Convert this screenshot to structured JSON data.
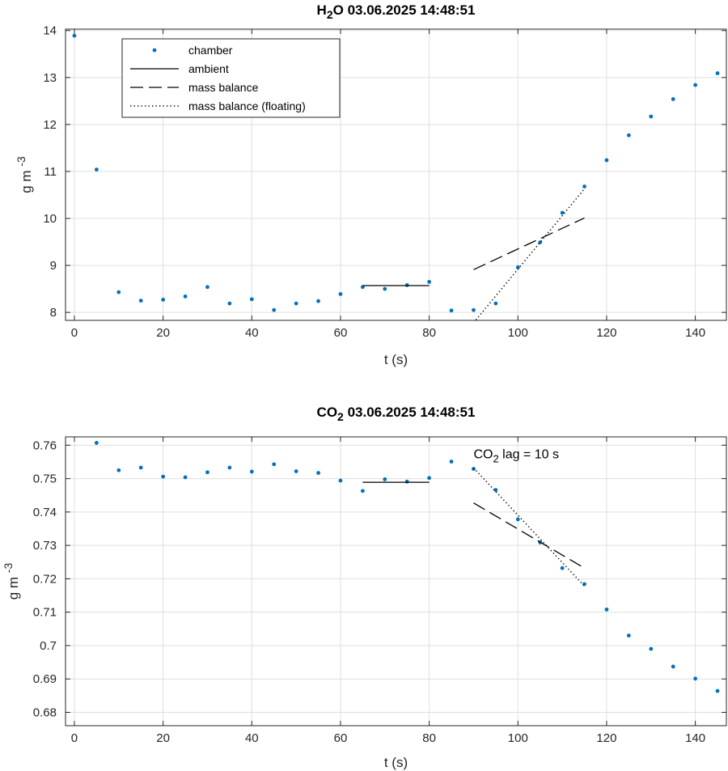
{
  "chart_data": [
    {
      "type": "scatter",
      "title": {
        "main": "H",
        "sub": "2",
        "tail": "O  03.06.2025 14:48:51"
      },
      "xlabel": "t (s)",
      "ylabel": {
        "base": "g m ",
        "sup": "-3"
      },
      "xlim": [
        -2,
        147
      ],
      "ylim": [
        7.83,
        14.03
      ],
      "xticks": [
        0,
        20,
        40,
        60,
        80,
        100,
        120,
        140
      ],
      "yticks": [
        8,
        9,
        10,
        11,
        12,
        13,
        14
      ],
      "ytick_labels": [
        "8",
        "9",
        "10",
        "11",
        "12",
        "13",
        "14"
      ],
      "grid": true,
      "legend_position": "top-left",
      "legend": [
        "chamber",
        "ambient",
        "mass balance",
        "mass balance (floating)"
      ],
      "series": [
        {
          "name": "chamber",
          "style": "dots",
          "color": "#0072BD",
          "x": [
            0,
            5,
            10,
            15,
            20,
            25,
            30,
            35,
            40,
            45,
            50,
            55,
            60,
            65,
            70,
            75,
            80,
            85,
            90,
            95,
            100,
            105,
            110,
            115,
            120,
            125,
            130,
            135,
            140,
            145
          ],
          "y": [
            13.89,
            11.04,
            8.43,
            8.25,
            8.27,
            8.34,
            8.54,
            8.19,
            8.28,
            8.05,
            8.19,
            8.24,
            8.39,
            8.54,
            8.5,
            8.58,
            8.65,
            8.04,
            8.05,
            8.19,
            8.96,
            9.49,
            10.12,
            10.68,
            11.24,
            11.77,
            12.17,
            12.54,
            12.84,
            13.09
          ]
        },
        {
          "name": "ambient",
          "style": "solid",
          "color": "#000000",
          "x": [
            65,
            80
          ],
          "y": [
            8.57,
            8.57
          ]
        },
        {
          "name": "mass balance",
          "style": "dashed",
          "color": "#000000",
          "x": [
            90,
            115
          ],
          "y": [
            8.91,
            10.01
          ]
        },
        {
          "name": "mass balance (floating)",
          "style": "dotted",
          "color": "#000000",
          "x": [
            90,
            115
          ],
          "y": [
            7.78,
            10.63
          ]
        }
      ],
      "annotations": []
    },
    {
      "type": "scatter",
      "title": {
        "main": "CO",
        "sub": "2",
        "tail": "  03.06.2025 14:48:51"
      },
      "xlabel": "t (s)",
      "ylabel": {
        "base": "g m ",
        "sup": "-3"
      },
      "xlim": [
        -2,
        147
      ],
      "ylim": [
        0.676,
        0.7625
      ],
      "xticks": [
        0,
        20,
        40,
        60,
        80,
        100,
        120,
        140
      ],
      "yticks": [
        0.68,
        0.69,
        0.7,
        0.71,
        0.72,
        0.73,
        0.74,
        0.75,
        0.76
      ],
      "ytick_labels": [
        "0.68",
        "0.69",
        "0.7",
        "0.71",
        "0.72",
        "0.73",
        "0.74",
        "0.75",
        "0.76"
      ],
      "grid": true,
      "legend_position": "none",
      "legend": [],
      "series": [
        {
          "name": "chamber",
          "style": "dots",
          "color": "#0072BD",
          "x": [
            5,
            10,
            15,
            20,
            25,
            30,
            35,
            40,
            45,
            50,
            55,
            60,
            65,
            70,
            75,
            80,
            85,
            90,
            95,
            100,
            105,
            110,
            115,
            120,
            125,
            130,
            135,
            140,
            145
          ],
          "y": [
            0.7607,
            0.7525,
            0.7533,
            0.7506,
            0.7504,
            0.7519,
            0.7533,
            0.7521,
            0.7543,
            0.7522,
            0.7517,
            0.7494,
            0.7463,
            0.7498,
            0.7491,
            0.7502,
            0.7551,
            0.7529,
            0.7466,
            0.7378,
            0.7309,
            0.7232,
            0.7184,
            0.7108,
            0.703,
            0.699,
            0.6937,
            0.6901,
            0.6864
          ]
        },
        {
          "name": "ambient",
          "style": "solid",
          "color": "#000000",
          "x": [
            65,
            80
          ],
          "y": [
            0.7489,
            0.7489
          ]
        },
        {
          "name": "mass balance",
          "style": "dashed",
          "color": "#000000",
          "x": [
            90,
            115
          ],
          "y": [
            0.7427,
            0.7232
          ]
        },
        {
          "name": "mass balance (floating)",
          "style": "dotted",
          "color": "#000000",
          "x": [
            90,
            115
          ],
          "y": [
            0.7532,
            0.7178
          ]
        }
      ],
      "annotations": [
        {
          "base": "CO",
          "sub": "2",
          "tail": " lag = 10 s",
          "x": 90,
          "y": 0.7575
        }
      ]
    }
  ]
}
